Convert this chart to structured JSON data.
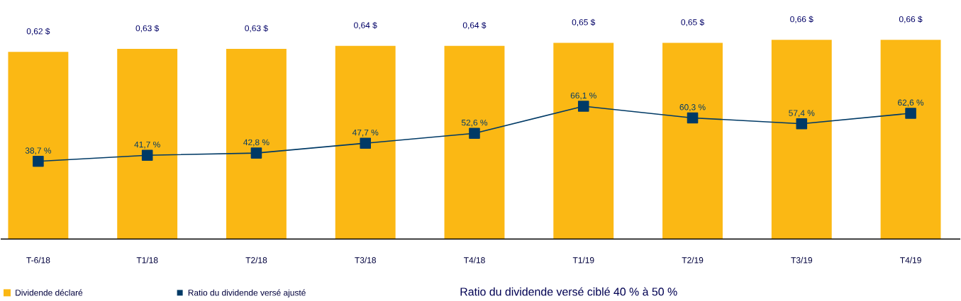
{
  "chart_data": {
    "type": "bar",
    "categories": [
      "T-6/18",
      "T1/18",
      "T2/18",
      "T3/18",
      "T4/18",
      "T1/19",
      "T2/19",
      "T3/19",
      "T4/19"
    ],
    "series": [
      {
        "name": "Dividende déclaré",
        "color": "#fbb814",
        "values": [
          0.62,
          0.63,
          0.63,
          0.64,
          0.64,
          0.65,
          0.65,
          0.66,
          0.66
        ],
        "value_labels": [
          "0,62 $",
          "0,63 $",
          "0,63 $",
          "0,64 $",
          "0,64 $",
          "0,65 $",
          "0,65 $",
          "0,66 $",
          "0,66 $"
        ]
      },
      {
        "name": "Ratio du dividende versé ajusté",
        "type": "line",
        "axis": "y2",
        "color": "#003a66",
        "marker": "square",
        "values": [
          38.7,
          41.7,
          42.8,
          47.7,
          52.6,
          66.1,
          60.3,
          57.4,
          62.6
        ],
        "value_labels": [
          "38,7 %",
          "41,7 %",
          "42,8 %",
          "47,7 %",
          "52,6 %",
          "66,1 %",
          "60,3 %",
          "57,4 %",
          "62,6 %"
        ]
      }
    ],
    "tick_labels": "x",
    "legend": "bottom",
    "annotations": [
      "Ratio du dividende versé ciblé 40 % à 50 %"
    ]
  }
}
